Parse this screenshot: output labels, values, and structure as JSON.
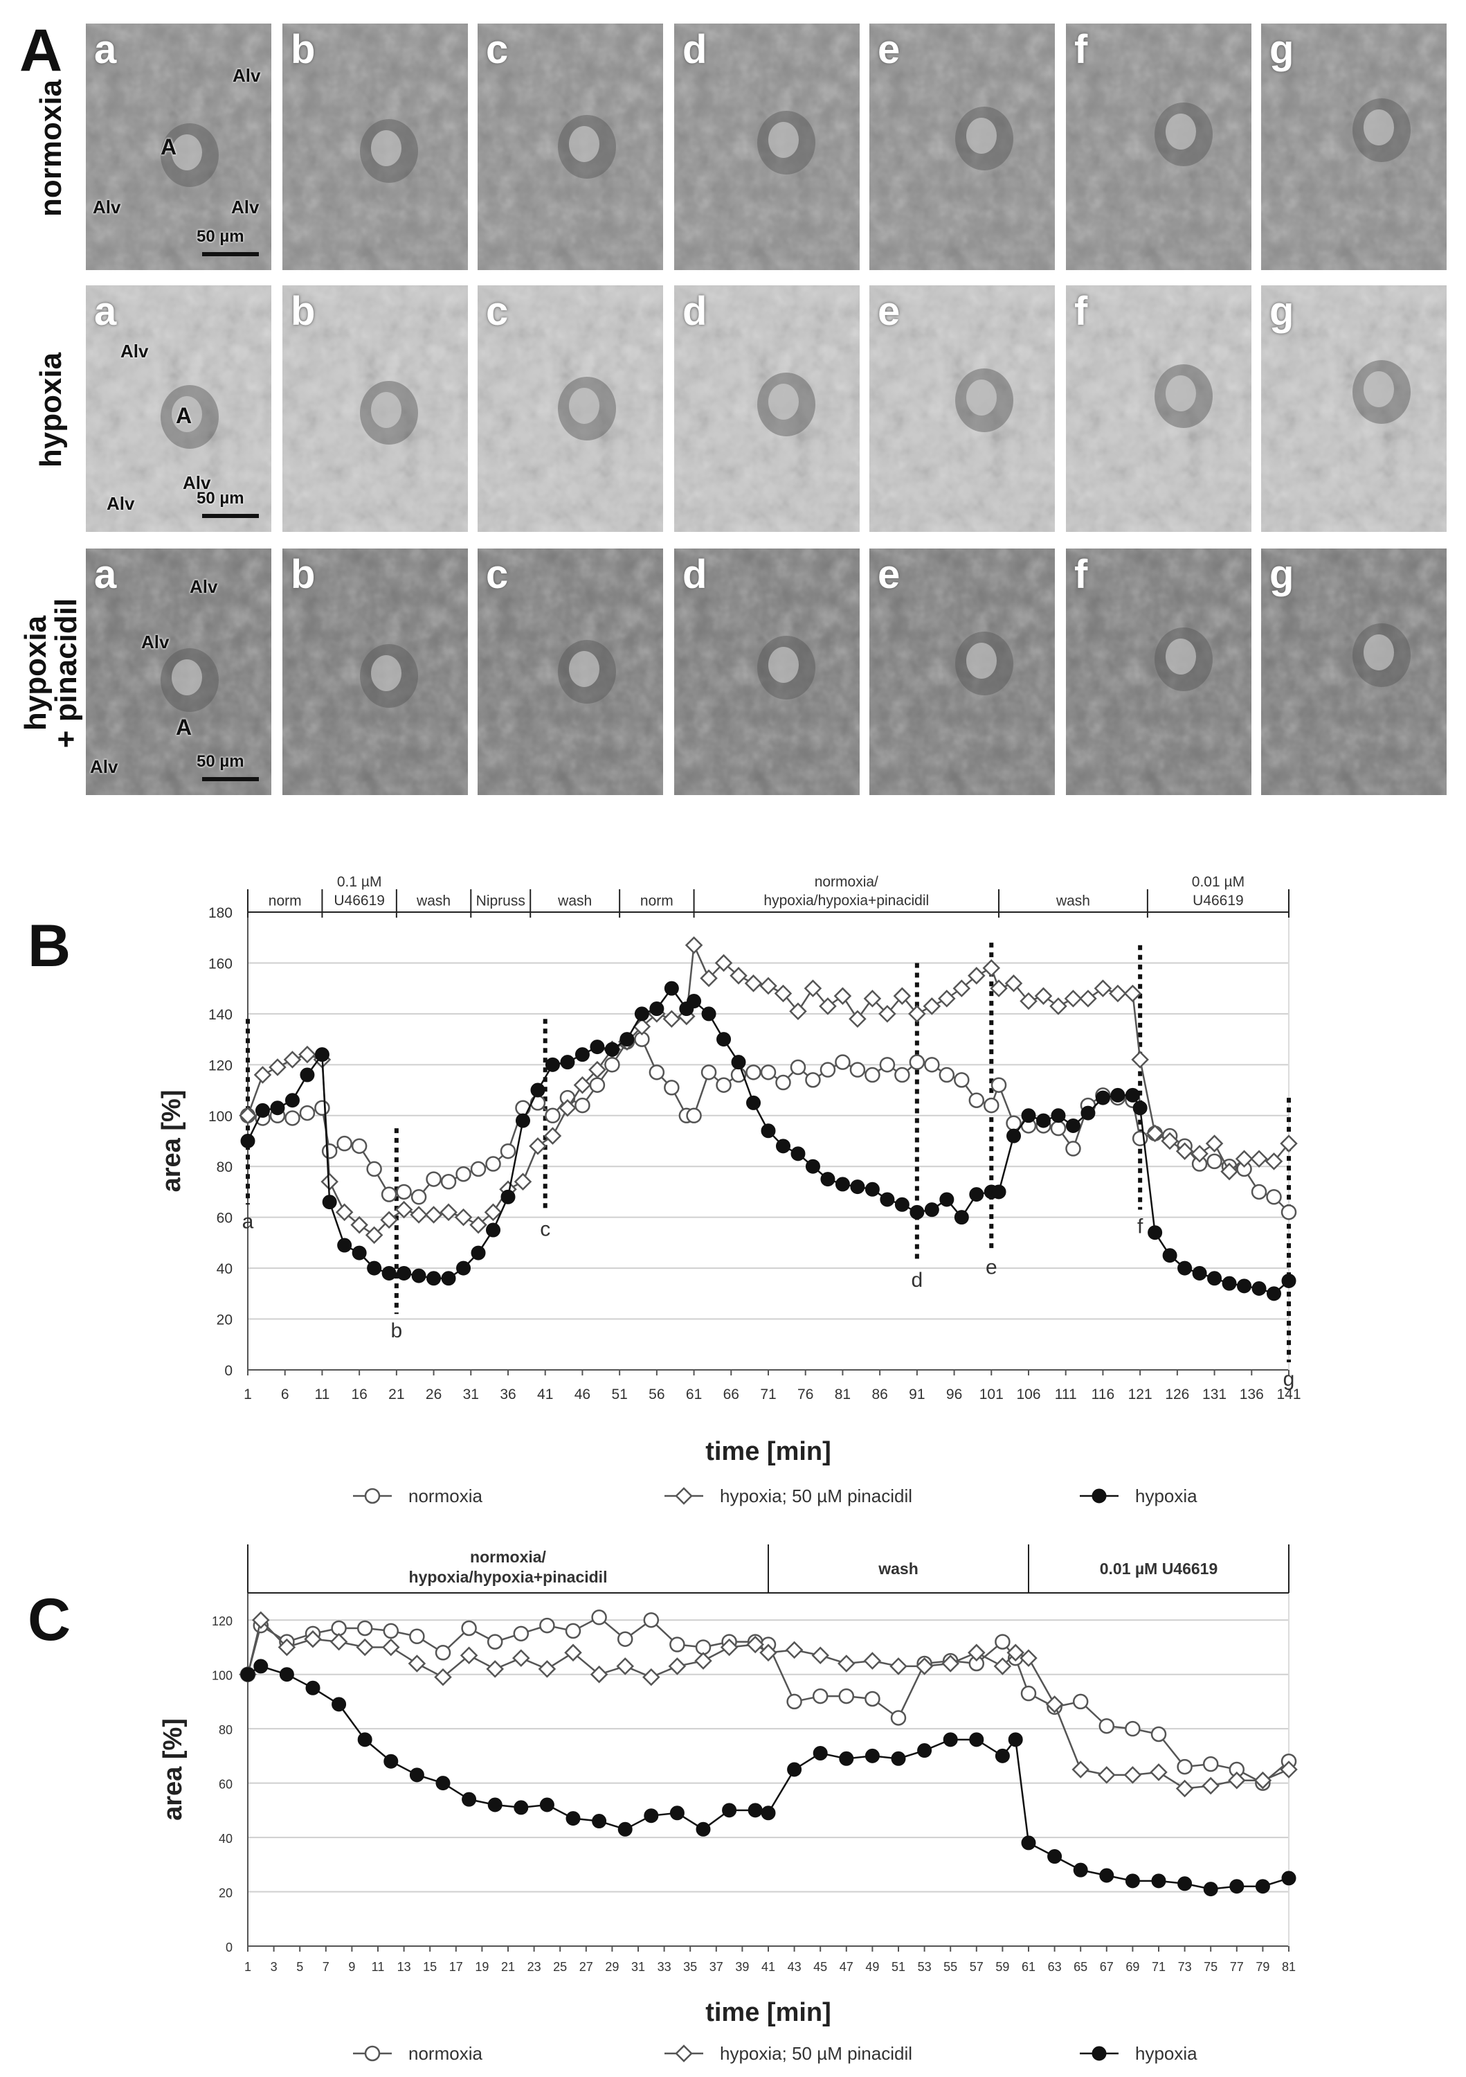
{
  "panel_labels": {
    "A": "A",
    "B": "B",
    "C": "C"
  },
  "panelA": {
    "rows": [
      {
        "label_lines": [
          "normoxia"
        ],
        "tile_labels": [
          "a",
          "b",
          "c",
          "d",
          "e",
          "f",
          "g"
        ],
        "tile_tone": "#8e8e8e",
        "annotations": [
          "Alv",
          "A",
          "Alv",
          "Alv"
        ],
        "scale": "50 µm"
      },
      {
        "label_lines": [
          "hypoxia"
        ],
        "tile_labels": [
          "a",
          "b",
          "c",
          "d",
          "e",
          "f",
          "g"
        ],
        "tile_tone": "#c9c9c9",
        "annotations": [
          "Alv",
          "A",
          "Alv",
          "Alv"
        ],
        "scale": "50 µm"
      },
      {
        "label_lines": [
          "hypoxia",
          "+ pinacidil"
        ],
        "tile_labels": [
          "a",
          "b",
          "c",
          "d",
          "e",
          "f",
          "g"
        ],
        "tile_tone": "#7a7a7a",
        "annotations": [
          "Alv",
          "Alv",
          "A",
          "Alv"
        ],
        "scale": "50 µm"
      }
    ]
  },
  "chart_data": [
    {
      "type": "line",
      "title": "",
      "xlabel": "time [min]",
      "ylabel": "area [%]",
      "ylim": [
        0,
        180
      ],
      "yticks": [
        0,
        20,
        40,
        60,
        80,
        100,
        120,
        140,
        160,
        180
      ],
      "xlim": [
        1,
        141
      ],
      "xticks": [
        1,
        6,
        11,
        16,
        21,
        26,
        31,
        36,
        41,
        46,
        51,
        56,
        61,
        66,
        71,
        76,
        81,
        86,
        91,
        96,
        101,
        106,
        111,
        116,
        121,
        126,
        131,
        136,
        141
      ],
      "grid": "horizontal",
      "legend_position": "bottom",
      "segments": [
        {
          "label": [
            "norm"
          ],
          "start": 1,
          "end": 11
        },
        {
          "label": [
            "0.1 µM",
            "U46619"
          ],
          "start": 11,
          "end": 21
        },
        {
          "label": [
            "wash"
          ],
          "start": 21,
          "end": 31
        },
        {
          "label": [
            "Nipruss"
          ],
          "start": 31,
          "end": 39
        },
        {
          "label": [
            "wash"
          ],
          "start": 39,
          "end": 51
        },
        {
          "label": [
            "norm"
          ],
          "start": 51,
          "end": 61
        },
        {
          "label": [
            "normoxia/",
            "hypoxia/hypoxia+pinacidil"
          ],
          "start": 61,
          "end": 102
        },
        {
          "label": [
            "wash"
          ],
          "start": 102,
          "end": 122
        },
        {
          "label": [
            "0.01 µM",
            "U46619"
          ],
          "start": 122,
          "end": 141
        }
      ],
      "markers": [
        {
          "label": "a",
          "x": 1,
          "ymin": 65,
          "ymax": 138
        },
        {
          "label": "b",
          "x": 21,
          "ymin": 22,
          "ymax": 95
        },
        {
          "label": "c",
          "x": 41,
          "ymin": 62,
          "ymax": 138
        },
        {
          "label": "d",
          "x": 91,
          "ymin": 42,
          "ymax": 160
        },
        {
          "label": "e",
          "x": 101,
          "ymin": 47,
          "ymax": 168
        },
        {
          "label": "f",
          "x": 121,
          "ymin": 63,
          "ymax": 167
        },
        {
          "label": "g",
          "x": 141,
          "ymin": 3,
          "ymax": 107
        }
      ],
      "series": [
        {
          "name": "normoxia",
          "marker": "open-circle",
          "x": [
            1,
            3,
            5,
            7,
            9,
            11,
            12,
            14,
            16,
            18,
            20,
            22,
            24,
            26,
            28,
            30,
            32,
            34,
            36,
            38,
            40,
            42,
            44,
            46,
            48,
            50,
            52,
            54,
            56,
            58,
            60,
            61,
            63,
            65,
            67,
            69,
            71,
            73,
            75,
            77,
            79,
            81,
            83,
            85,
            87,
            89,
            91,
            93,
            95,
            97,
            99,
            101,
            102,
            104,
            106,
            108,
            110,
            112,
            114,
            116,
            118,
            120,
            121,
            123,
            125,
            127,
            129,
            131,
            133,
            135,
            137,
            139,
            141
          ],
          "y": [
            100,
            99,
            100,
            99,
            101,
            103,
            86,
            89,
            88,
            79,
            69,
            70,
            68,
            75,
            74,
            77,
            79,
            81,
            86,
            103,
            105,
            100,
            107,
            104,
            112,
            120,
            129,
            130,
            117,
            111,
            100,
            100,
            117,
            112,
            116,
            117,
            117,
            113,
            119,
            114,
            118,
            121,
            118,
            116,
            120,
            116,
            121,
            120,
            116,
            114,
            106,
            104,
            112,
            97,
            96,
            96,
            95,
            87,
            104,
            108,
            107,
            106,
            91,
            93,
            92,
            88,
            81,
            82,
            80,
            79,
            70,
            68,
            62
          ]
        },
        {
          "name": "hypoxia; 50 µM pinacidil",
          "marker": "open-diamond",
          "x": [
            1,
            3,
            5,
            7,
            9,
            11,
            12,
            14,
            16,
            18,
            20,
            22,
            24,
            26,
            28,
            30,
            32,
            34,
            36,
            38,
            40,
            42,
            44,
            46,
            48,
            50,
            52,
            54,
            56,
            58,
            60,
            61,
            63,
            65,
            67,
            69,
            71,
            73,
            75,
            77,
            79,
            81,
            83,
            85,
            87,
            89,
            91,
            93,
            95,
            97,
            99,
            101,
            102,
            104,
            106,
            108,
            110,
            112,
            114,
            116,
            118,
            120,
            121,
            123,
            125,
            127,
            129,
            131,
            133,
            135,
            137,
            139,
            141
          ],
          "y": [
            100,
            116,
            119,
            122,
            124,
            122,
            74,
            62,
            57,
            53,
            59,
            63,
            61,
            61,
            62,
            60,
            57,
            62,
            71,
            74,
            88,
            92,
            103,
            112,
            118,
            126,
            129,
            135,
            140,
            138,
            139,
            167,
            154,
            160,
            155,
            152,
            151,
            148,
            141,
            150,
            143,
            147,
            138,
            146,
            140,
            147,
            140,
            143,
            146,
            150,
            155,
            158,
            150,
            152,
            145,
            147,
            143,
            146,
            146,
            150,
            148,
            148,
            122,
            93,
            90,
            86,
            85,
            89,
            78,
            83,
            83,
            82,
            89
          ]
        },
        {
          "name": "hypoxia",
          "marker": "filled-circle",
          "x": [
            1,
            3,
            5,
            7,
            9,
            11,
            12,
            14,
            16,
            18,
            20,
            22,
            24,
            26,
            28,
            30,
            32,
            34,
            36,
            38,
            40,
            42,
            44,
            46,
            48,
            50,
            52,
            54,
            56,
            58,
            60,
            61,
            63,
            65,
            67,
            69,
            71,
            73,
            75,
            77,
            79,
            81,
            83,
            85,
            87,
            89,
            91,
            93,
            95,
            97,
            99,
            101,
            102,
            104,
            106,
            108,
            110,
            112,
            114,
            116,
            118,
            120,
            121,
            123,
            125,
            127,
            129,
            131,
            133,
            135,
            137,
            139,
            141
          ],
          "y": [
            90,
            102,
            103,
            106,
            116,
            124,
            66,
            49,
            46,
            40,
            38,
            38,
            37,
            36,
            36,
            40,
            46,
            55,
            68,
            98,
            110,
            120,
            121,
            124,
            127,
            126,
            130,
            140,
            142,
            150,
            142,
            145,
            140,
            130,
            121,
            105,
            94,
            88,
            85,
            80,
            75,
            73,
            72,
            71,
            67,
            65,
            62,
            63,
            67,
            60,
            69,
            70,
            70,
            92,
            100,
            98,
            100,
            96,
            101,
            107,
            108,
            108,
            103,
            54,
            45,
            40,
            38,
            36,
            34,
            33,
            32,
            30,
            35
          ]
        }
      ]
    },
    {
      "type": "line",
      "title": "",
      "xlabel": "time [min]",
      "ylabel": "area [%]",
      "ylim": [
        0,
        130
      ],
      "yticks": [
        0,
        20,
        40,
        60,
        80,
        100,
        120
      ],
      "xlim": [
        1,
        81
      ],
      "xticks": [
        1,
        3,
        5,
        7,
        9,
        11,
        13,
        15,
        17,
        19,
        21,
        23,
        25,
        27,
        29,
        31,
        33,
        35,
        37,
        39,
        41,
        43,
        45,
        47,
        49,
        51,
        53,
        55,
        57,
        59,
        61,
        63,
        65,
        67,
        69,
        71,
        73,
        75,
        77,
        79,
        81
      ],
      "grid": "horizontal",
      "legend_position": "bottom",
      "segments": [
        {
          "label": [
            "normoxia/",
            "hypoxia/hypoxia+pinacidil"
          ],
          "start": 1,
          "end": 41
        },
        {
          "label": [
            "wash"
          ],
          "start": 41,
          "end": 61
        },
        {
          "label": [
            "0.01 µM U46619"
          ],
          "start": 61,
          "end": 81
        }
      ],
      "series": [
        {
          "name": "normoxia",
          "marker": "open-circle",
          "x": [
            1,
            2,
            4,
            6,
            8,
            10,
            12,
            14,
            16,
            18,
            20,
            22,
            24,
            26,
            28,
            30,
            32,
            34,
            36,
            38,
            40,
            41,
            43,
            45,
            47,
            49,
            51,
            53,
            55,
            57,
            59,
            60,
            61,
            63,
            65,
            67,
            69,
            71,
            73,
            75,
            77,
            79,
            81
          ],
          "y": [
            100,
            118,
            112,
            115,
            117,
            117,
            116,
            114,
            108,
            117,
            112,
            115,
            118,
            116,
            121,
            113,
            120,
            111,
            110,
            112,
            112,
            111,
            90,
            92,
            92,
            91,
            84,
            104,
            105,
            104,
            112,
            106,
            93,
            88,
            90,
            81,
            80,
            78,
            66,
            67,
            65,
            60,
            68
          ]
        },
        {
          "name": "hypoxia; 50 µM pinacidil",
          "marker": "open-diamond",
          "x": [
            1,
            2,
            4,
            6,
            8,
            10,
            12,
            14,
            16,
            18,
            20,
            22,
            24,
            26,
            28,
            30,
            32,
            34,
            36,
            38,
            40,
            41,
            43,
            45,
            47,
            49,
            51,
            53,
            55,
            57,
            59,
            60,
            61,
            63,
            65,
            67,
            69,
            71,
            73,
            75,
            77,
            79,
            81
          ],
          "y": [
            100,
            120,
            110,
            113,
            112,
            110,
            110,
            104,
            99,
            107,
            102,
            106,
            102,
            108,
            100,
            103,
            99,
            103,
            105,
            110,
            111,
            108,
            109,
            107,
            104,
            105,
            103,
            103,
            104,
            108,
            103,
            108,
            106,
            89,
            65,
            63,
            63,
            64,
            58,
            59,
            61,
            61,
            65
          ]
        },
        {
          "name": "hypoxia",
          "marker": "filled-circle",
          "x": [
            1,
            2,
            4,
            6,
            8,
            10,
            12,
            14,
            16,
            18,
            20,
            22,
            24,
            26,
            28,
            30,
            32,
            34,
            36,
            38,
            40,
            41,
            43,
            45,
            47,
            49,
            51,
            53,
            55,
            57,
            59,
            60,
            61,
            63,
            65,
            67,
            69,
            71,
            73,
            75,
            77,
            79,
            81
          ],
          "y": [
            100,
            103,
            100,
            95,
            89,
            76,
            68,
            63,
            60,
            54,
            52,
            51,
            52,
            47,
            46,
            43,
            48,
            49,
            43,
            50,
            50,
            49,
            65,
            71,
            69,
            70,
            69,
            72,
            76,
            76,
            70,
            76,
            38,
            33,
            28,
            26,
            24,
            24,
            23,
            21,
            22,
            22,
            25
          ]
        }
      ]
    }
  ]
}
